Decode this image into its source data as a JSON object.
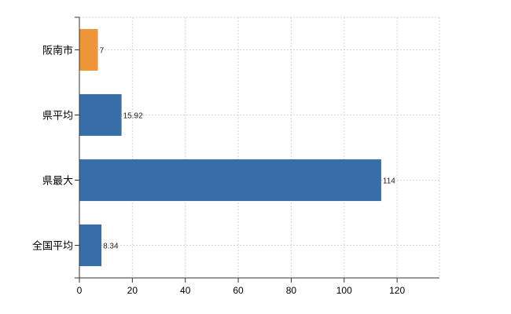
{
  "chart_data": {
    "type": "bar",
    "orientation": "horizontal",
    "categories": [
      "阪南市",
      "県平均",
      "県最大",
      "全国平均"
    ],
    "values": [
      7,
      15.92,
      114,
      8.34
    ],
    "value_labels": [
      "7",
      "15.92",
      "114",
      "8.34"
    ],
    "bar_colors": [
      "#f0963a",
      "#3a6ea8",
      "#3a6ea8",
      "#3a6ea8"
    ],
    "xlim": [
      0,
      136
    ],
    "x_ticks": [
      0,
      20,
      40,
      60,
      80,
      100,
      120
    ],
    "grid": true,
    "title": "",
    "xlabel": "",
    "ylabel": ""
  }
}
